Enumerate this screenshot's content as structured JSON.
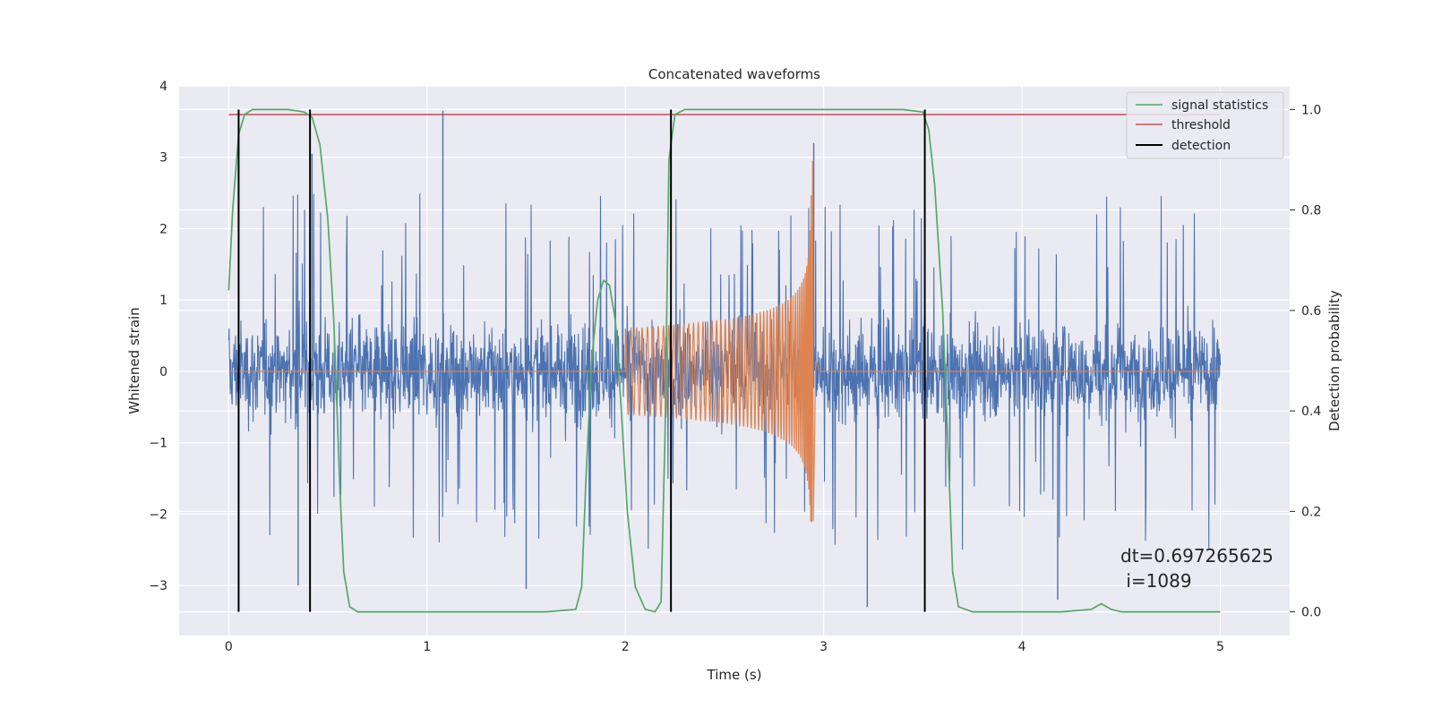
{
  "chart_data": {
    "type": "line",
    "title": "Concatenated waveforms",
    "xlabel": "Time (s)",
    "ylabel": "Whitened strain",
    "y2label": "Detection probability",
    "xlim": [
      -0.25,
      5.35
    ],
    "ylim": [
      -3.7,
      4.0
    ],
    "y2lim": [
      -0.047,
      1.047
    ],
    "xticks": [
      0,
      1,
      2,
      3,
      4,
      5
    ],
    "xtick_labels": [
      "0",
      "1",
      "2",
      "3",
      "4",
      "5"
    ],
    "yticks": [
      -3,
      -2,
      -1,
      0,
      1,
      2,
      3,
      4
    ],
    "ytick_labels": [
      "−3",
      "−2",
      "−1",
      "0",
      "1",
      "2",
      "3",
      "4"
    ],
    "y2ticks": [
      0.0,
      0.2,
      0.4,
      0.6,
      0.8,
      1.0
    ],
    "y2tick_labels": [
      "0.0",
      "0.2",
      "0.4",
      "0.6",
      "0.8",
      "1.0"
    ],
    "grid": true,
    "legend_position": "top-right",
    "colors": {
      "strain": "#4c72b0",
      "injected": "#dd8452",
      "signal_statistics": "#55a868",
      "threshold": "#c44e52",
      "detection": "#000000",
      "axes_background": "#eaeaf2",
      "grid": "#ffffff"
    },
    "legend": [
      {
        "label": "signal statistics",
        "color": "#55a868"
      },
      {
        "label": "threshold",
        "color": "#c44e52"
      },
      {
        "label": "detection",
        "color": "#000000"
      }
    ],
    "strain_noise": {
      "x_range": [
        0,
        5
      ],
      "core_amplitude": 0.85,
      "peak_range": [
        -3.3,
        3.65
      ],
      "notable_peaks": [
        {
          "x": 1.08,
          "y": 3.65
        },
        {
          "x": 0.42,
          "y": 3.05
        },
        {
          "x": 2.95,
          "y": 3.2
        },
        {
          "x": 3.22,
          "y": -3.3
        },
        {
          "x": 4.18,
          "y": -3.2
        },
        {
          "x": 0.35,
          "y": -3.0
        },
        {
          "x": 1.5,
          "y": -3.05
        }
      ]
    },
    "injected_signal": {
      "x_start": 2.0,
      "x_merger": 2.94,
      "start_amplitude": 0.6,
      "peak_max": 2.95,
      "peak_min": -2.1,
      "baseline": 0
    },
    "signal_statistics": {
      "x": [
        0.0,
        0.02,
        0.05,
        0.08,
        0.12,
        0.3,
        0.38,
        0.42,
        0.46,
        0.5,
        0.53,
        0.56,
        0.58,
        0.61,
        0.65,
        1.0,
        1.6,
        1.75,
        1.78,
        1.8,
        1.83,
        1.86,
        1.89,
        1.92,
        1.95,
        1.98,
        2.01,
        2.05,
        2.1,
        2.15,
        2.18,
        2.2,
        2.22,
        2.25,
        2.3,
        2.5,
        3.4,
        3.5,
        3.53,
        3.56,
        3.6,
        3.63,
        3.65,
        3.68,
        3.75,
        4.2,
        4.35,
        4.4,
        4.45,
        4.5,
        5.0
      ],
      "y": [
        0.64,
        0.8,
        0.95,
        0.99,
        1.0,
        1.0,
        0.995,
        0.985,
        0.93,
        0.78,
        0.58,
        0.25,
        0.08,
        0.01,
        0.0,
        0.0,
        0.0,
        0.005,
        0.05,
        0.25,
        0.5,
        0.62,
        0.66,
        0.65,
        0.58,
        0.4,
        0.2,
        0.05,
        0.005,
        0.0,
        0.02,
        0.35,
        0.9,
        0.99,
        1.0,
        1.0,
        1.0,
        0.995,
        0.96,
        0.85,
        0.6,
        0.3,
        0.08,
        0.01,
        0.0,
        0.0,
        0.005,
        0.016,
        0.005,
        0.0,
        0.0
      ]
    },
    "threshold": {
      "value": 0.99,
      "x_range": [
        0,
        5
      ]
    },
    "detections": [
      0.05,
      0.41,
      2.23,
      3.51
    ],
    "detection_y_range": [
      0.0,
      1.0
    ],
    "annotation": {
      "line1": "dt=0.697265625",
      "line2": " i=1089"
    }
  }
}
